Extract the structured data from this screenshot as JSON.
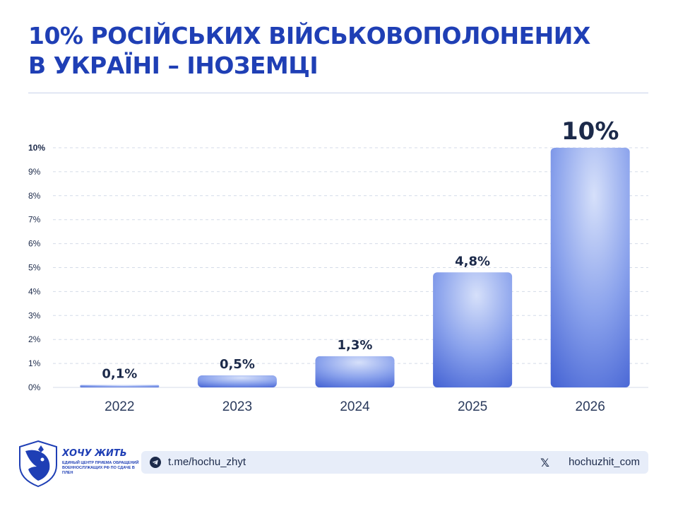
{
  "title": {
    "line1": "10% РОСІЙСЬКИХ ВІЙСЬКОВОПОЛОНЕНИХ",
    "line2": "В УКРАЇНІ – ІНОЗЕМЦІ"
  },
  "chart_data": {
    "type": "bar",
    "title": "10% РОСІЙСЬКИХ ВІЙСЬКОВОПОЛОНЕНИХ В УКРАЇНІ – ІНОЗЕМЦІ",
    "categories": [
      "2022",
      "2023",
      "2024",
      "2025",
      "2026"
    ],
    "values": [
      0.1,
      0.5,
      1.3,
      4.8,
      10
    ],
    "data_labels": [
      "0,1%",
      "0,5%",
      "1,3%",
      "4,8%",
      "10%"
    ],
    "y_ticks": [
      "0%",
      "1%",
      "2%",
      "3%",
      "4%",
      "5%",
      "6%",
      "7%",
      "8%",
      "9%",
      "10%"
    ],
    "ylim": [
      0,
      10
    ],
    "xlabel": "",
    "ylabel": "",
    "grid": true,
    "colors": {
      "bar_light": "#cdd9f7",
      "bar_dark": "#2f4fcc",
      "grid": "#d4dbe8"
    }
  },
  "footer": {
    "telegram": "t.me/hochu_zhyt",
    "x_handle": "hochuzhit_com",
    "telegram_icon": "telegram-icon",
    "x_icon": "x-icon",
    "x_glyph": "𝕏"
  },
  "logo": {
    "name": "ХОЧУ ЖИТЬ",
    "subtitle": "ЕДИНЫЙ ЦЕНТР ПРИЕМА ОБРАЩЕНИЙ ВОЕННОСЛУЖАЩИХ РФ ПО СДАЧЕ В ПЛЕН"
  },
  "colors": {
    "accent": "#1f3fb5",
    "footer_bg": "#e7edf9"
  }
}
